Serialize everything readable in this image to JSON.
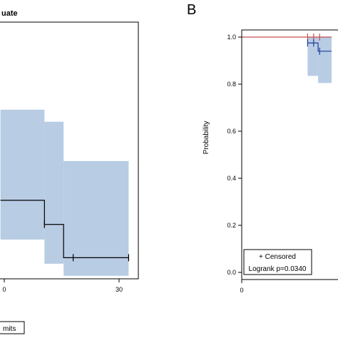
{
  "chart_data": [
    {
      "panel": "",
      "type": "line",
      "title": "uate",
      "xlabel": "",
      "ylabel": "",
      "xlim": [
        -1,
        33
      ],
      "ylim": [
        0.2,
        1.05
      ],
      "x_ticks": [
        0,
        30
      ],
      "x_tick_labels": [
        "0",
        "30"
      ],
      "series": [
        {
          "steps": [
            [
              -1,
              0.46
            ],
            [
              10.5,
              0.46
            ],
            [
              10.5,
              0.38
            ],
            [
              15.5,
              0.38
            ],
            [
              15.5,
              0.27
            ],
            [
              32.5,
              0.27
            ]
          ],
          "censored": [
            [
              10.5,
              0.38
            ],
            [
              18,
              0.27
            ],
            [
              32.5,
              0.27
            ]
          ],
          "ci": [
            {
              "x0": -1,
              "x1": 10.5,
              "low": 0.33,
              "high": 0.76
            },
            {
              "x0": 10.5,
              "x1": 15.5,
              "low": 0.25,
              "high": 0.72
            },
            {
              "x0": 15.5,
              "x1": 32.5,
              "low": 0.21,
              "high": 0.59
            }
          ],
          "line_color": "#000000",
          "band_color": "#b8cce4"
        }
      ],
      "legend_text": "mits"
    },
    {
      "panel": "B",
      "type": "line",
      "title": "",
      "xlabel": "",
      "ylabel": "Probability",
      "xlim": [
        -1,
        12
      ],
      "ylim": [
        -0.02,
        1.05
      ],
      "x_ticks": [
        0
      ],
      "x_tick_labels": [
        "0"
      ],
      "y_ticks": [
        0.0,
        0.2,
        0.4,
        0.6,
        0.8,
        1.0
      ],
      "y_tick_labels": [
        "0.0",
        "0.2",
        "0.4",
        "0.6",
        "0.8",
        "1.0"
      ],
      "series": [
        {
          "steps": [
            [
              0,
              1.0
            ],
            [
              12,
              1.0
            ]
          ],
          "censored": [
            [
              8.8,
              1.0
            ],
            [
              9.6,
              1.0
            ],
            [
              10.4,
              1.0
            ]
          ],
          "line_color": "#c0504d"
        },
        {
          "steps": [
            [
              8.8,
              0.975
            ],
            [
              10.2,
              0.975
            ],
            [
              10.2,
              0.94
            ],
            [
              12,
              0.94
            ]
          ],
          "censored": [
            [
              8.8,
              0.975
            ],
            [
              9.6,
              0.975
            ],
            [
              10.4,
              0.94
            ]
          ],
          "ci": [
            {
              "x0": 8.8,
              "x1": 10.2,
              "low": 0.835,
              "high": 1.0
            },
            {
              "x0": 10.2,
              "x1": 12,
              "low": 0.805,
              "high": 1.0
            }
          ],
          "line_color": "#1f3b99",
          "band_color": "#b8cce4"
        }
      ],
      "legend": {
        "censored_label": "+ Censored",
        "test_label": "Logrank p=0.0340"
      }
    }
  ]
}
